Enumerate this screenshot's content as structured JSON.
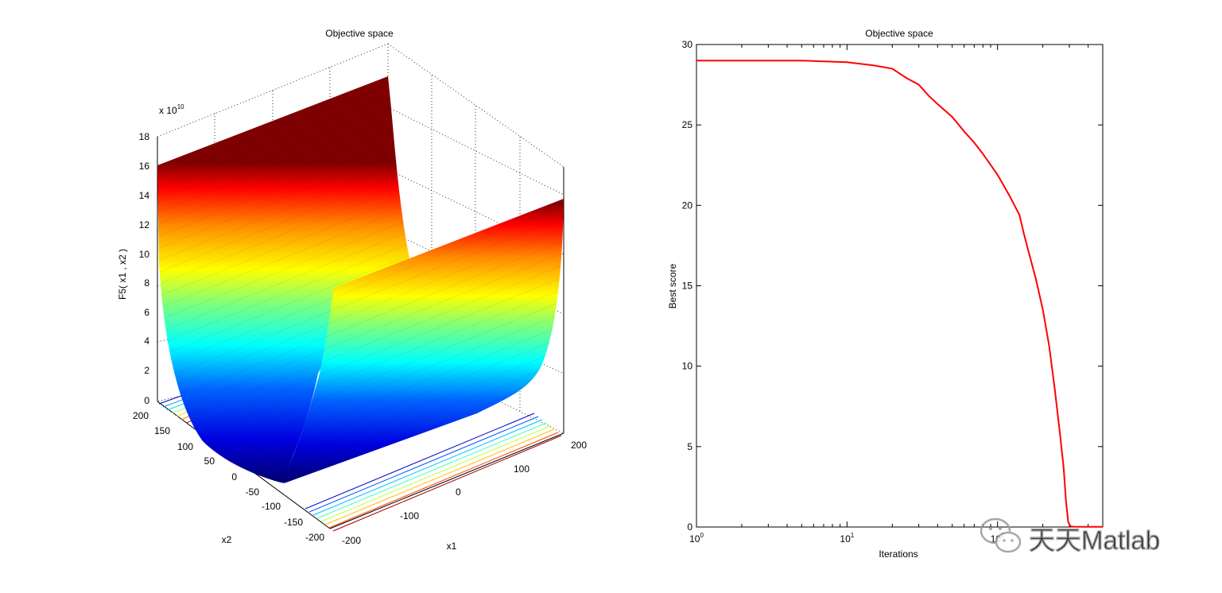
{
  "chart_data": [
    {
      "type": "surface",
      "title": "Objective space",
      "zlabel": "F5( x1 , x2 )",
      "xlabel": "x1",
      "ylabel": "x2",
      "z_exponent_label": "x 10",
      "z_exponent_power": "10",
      "z_ticks": [
        "0",
        "2",
        "4",
        "6",
        "8",
        "10",
        "12",
        "14",
        "16",
        "18"
      ],
      "x1_ticks": [
        "-200",
        "-100",
        "0",
        "100",
        "200"
      ],
      "x2_ticks": [
        "200",
        "150",
        "100",
        "50",
        "0",
        "-50",
        "-100",
        "-150",
        "-200"
      ],
      "x1_range": [
        -200,
        200
      ],
      "x2_range": [
        -200,
        200
      ],
      "zlim": [
        0,
        18
      ],
      "z_max_value": 16,
      "colormap": "jet",
      "grid": true,
      "contours_on_floor": true
    },
    {
      "type": "line",
      "title": "Objective space",
      "xlabel": "Iterations",
      "ylabel": "Best score",
      "xscale": "log",
      "xlim": [
        1,
        500
      ],
      "ylim": [
        0,
        30
      ],
      "x_tick_labels": [
        "10",
        "10",
        "10"
      ],
      "x_tick_exponents": [
        "0",
        "1",
        "2"
      ],
      "y_tick_labels": [
        "0",
        "5",
        "10",
        "15",
        "20",
        "25",
        "30"
      ],
      "series": [
        {
          "color": "#ff0000",
          "points": [
            [
              1,
              29
            ],
            [
              5,
              29
            ],
            [
              10,
              28.9
            ],
            [
              15,
              28.7
            ],
            [
              20,
              28.5
            ],
            [
              25,
              27.9
            ],
            [
              30,
              27.5
            ],
            [
              35,
              26.8
            ],
            [
              40,
              26.3
            ],
            [
              50,
              25.5
            ],
            [
              60,
              24.6
            ],
            [
              70,
              23.9
            ],
            [
              80,
              23.2
            ],
            [
              100,
              21.9
            ],
            [
              120,
              20.6
            ],
            [
              140,
              19.4
            ],
            [
              150,
              18.2
            ],
            [
              160,
              17.2
            ],
            [
              180,
              15.4
            ],
            [
              200,
              13.5
            ],
            [
              220,
              11.3
            ],
            [
              240,
              8.6
            ],
            [
              260,
              5.8
            ],
            [
              275,
              3.7
            ],
            [
              285,
              1.6
            ],
            [
              295,
              0.3
            ],
            [
              305,
              0.05
            ],
            [
              320,
              0.02
            ],
            [
              400,
              0.01
            ],
            [
              500,
              0.01
            ]
          ]
        }
      ]
    }
  ],
  "watermark": {
    "text": "天天Matlab",
    "icon": "wechat-icon"
  }
}
